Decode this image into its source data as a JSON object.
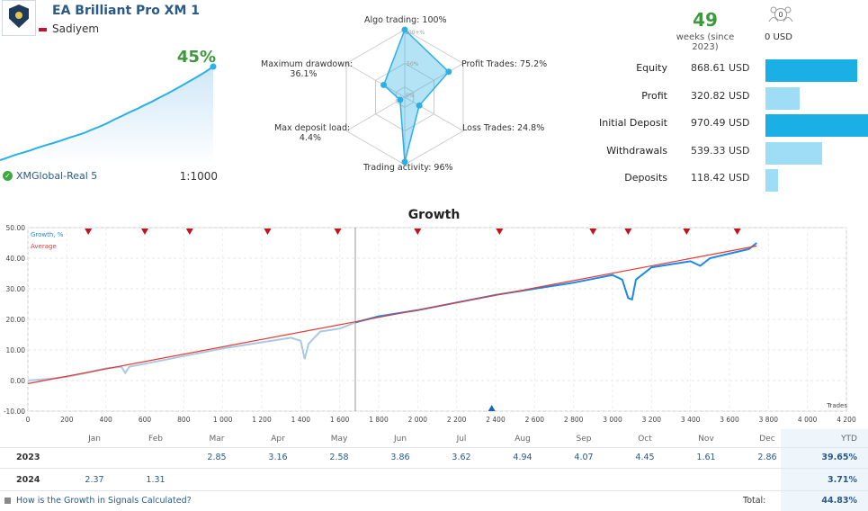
{
  "header": {
    "title": "EA Brilliant Pro XM 1",
    "author": "Sadiyem"
  },
  "mini": {
    "growth_pct": "45%",
    "broker": "XMGlobal-Real 5",
    "leverage": "1:1000",
    "curve": [
      0,
      1.2,
      2.5,
      3.6,
      4.7,
      6.0,
      7.2,
      8.2,
      9.4,
      10.7,
      11.8,
      13.0,
      14.6,
      16.0,
      17.6,
      19.5,
      21.2,
      23.0,
      24.6,
      26.5,
      28.2,
      30.2,
      32.0,
      34.0,
      36.1,
      38.2,
      40.3,
      42.5,
      45
    ]
  },
  "radar": {
    "labels": {
      "algo": "Algo trading: 100%",
      "profit_trades": "Profit Trades: 75.2%",
      "loss_trades": "Loss Trades: 24.8%",
      "activity": "Trading activity: 96%",
      "deposit_load": "Max deposit load:",
      "deposit_load_val": "4.4%",
      "drawdown": "Maximum drawdown:",
      "drawdown_val": "36.1%",
      "ring_100": "100+%",
      "ring_50": "50%",
      "ring_0": "0%"
    },
    "values": {
      "algo": 100,
      "profit_trades": 75.2,
      "loss_trades": 24.8,
      "activity": 96,
      "deposit_load": 4.4,
      "drawdown": 36.1
    }
  },
  "weeks": {
    "value": "49",
    "label": "weeks (since 2023)"
  },
  "subscribers": {
    "count": "0",
    "amount": "0 USD"
  },
  "stats": [
    {
      "label": "Equity",
      "value": "868.61 USD",
      "amount": 868.61,
      "shade": "dark"
    },
    {
      "label": "Profit",
      "value": "320.82 USD",
      "amount": 320.82,
      "shade": "light"
    },
    {
      "label": "Initial Deposit",
      "value": "970.49 USD",
      "amount": 970.49,
      "shade": "dark"
    },
    {
      "label": "Withdrawals",
      "value": "539.33 USD",
      "amount": 539.33,
      "shade": "light"
    },
    {
      "label": "Deposits",
      "value": "118.42 USD",
      "amount": 118.42,
      "shade": "light"
    }
  ],
  "chart_data": {
    "type": "line",
    "title": "Growth",
    "xlabel": "Trades",
    "legend": [
      "Growth, %",
      "Average"
    ],
    "legend_placement": "top-left",
    "xlim": [
      0,
      4200
    ],
    "ylim": [
      -10,
      50
    ],
    "x_ticks": [
      "0",
      "200",
      "400",
      "600",
      "800",
      "1 000",
      "1 200",
      "1 400",
      "1 600",
      "1 800",
      "2 000",
      "2 200",
      "2 400",
      "2 600",
      "2 800",
      "3 000",
      "3 200",
      "3 400",
      "3 600",
      "3 800",
      "4 000",
      "4 200"
    ],
    "x_tick_values": [
      0,
      200,
      400,
      600,
      800,
      1000,
      1200,
      1400,
      1600,
      1800,
      2000,
      2200,
      2400,
      2600,
      2800,
      3000,
      3200,
      3400,
      3600,
      3800,
      4000,
      4200
    ],
    "y_ticks": [
      "50.00",
      "40.00",
      "30.00",
      "20.00",
      "10.00",
      "0.00",
      "-10.00"
    ],
    "y_tick_values": [
      50,
      40,
      30,
      20,
      10,
      0,
      -10
    ],
    "series": [
      {
        "name": "Growth, %",
        "x": [
          0,
          100,
          200,
          300,
          400,
          480,
          500,
          520,
          600,
          800,
          1000,
          1200,
          1350,
          1400,
          1420,
          1440,
          1500,
          1600,
          1680,
          1800,
          2000,
          2200,
          2400,
          2600,
          2800,
          3000,
          3050,
          3080,
          3100,
          3120,
          3200,
          3300,
          3400,
          3450,
          3500,
          3600,
          3700,
          3740
        ],
        "y": [
          0,
          0.5,
          1.2,
          2.5,
          4,
          4.5,
          2.5,
          4.5,
          5.5,
          8,
          10.5,
          12.5,
          14,
          13,
          7,
          12,
          16,
          17,
          19,
          21,
          23,
          25.5,
          28,
          30,
          32,
          34.5,
          33,
          27,
          26.5,
          33,
          37,
          38,
          39,
          37.5,
          40,
          41.5,
          43,
          45
        ]
      },
      {
        "name": "Average",
        "x": [
          0,
          3740
        ],
        "y": [
          -1,
          44
        ]
      }
    ],
    "markers_top_x": [
      310,
      600,
      830,
      1230,
      1590,
      2000,
      2420,
      2900,
      3080,
      3380,
      3640
    ],
    "marker_bottom_x": [
      2380
    ],
    "divider_x": 1680
  },
  "table": {
    "months": [
      "Jan",
      "Feb",
      "Mar",
      "Apr",
      "May",
      "Jun",
      "Jul",
      "Aug",
      "Sep",
      "Oct",
      "Nov",
      "Dec"
    ],
    "ytd_header": "YTD",
    "rows": [
      {
        "year": "2023",
        "values": [
          "",
          "",
          "2.85",
          "3.16",
          "2.58",
          "3.86",
          "3.62",
          "4.94",
          "4.07",
          "4.45",
          "1.61",
          "2.86"
        ],
        "ytd": "39.65%"
      },
      {
        "year": "2024",
        "values": [
          "2.37",
          "1.31",
          "",
          "",
          "",
          "",
          "",
          "",
          "",
          "",
          "",
          ""
        ],
        "ytd": "3.71%"
      }
    ],
    "total_label": "Total:",
    "total_value": "44.83%",
    "link_text": "How is the Growth in Signals Calculated?"
  },
  "colors": {
    "growth_line": "#1e88e5",
    "growth_light": "#a9c8e4",
    "average_line": "#e53935",
    "marker": "#c0141c",
    "accent_green": "#3c9a3c",
    "bar_dark": "#1ab0e6",
    "bar_light": "#9fdcf5"
  }
}
